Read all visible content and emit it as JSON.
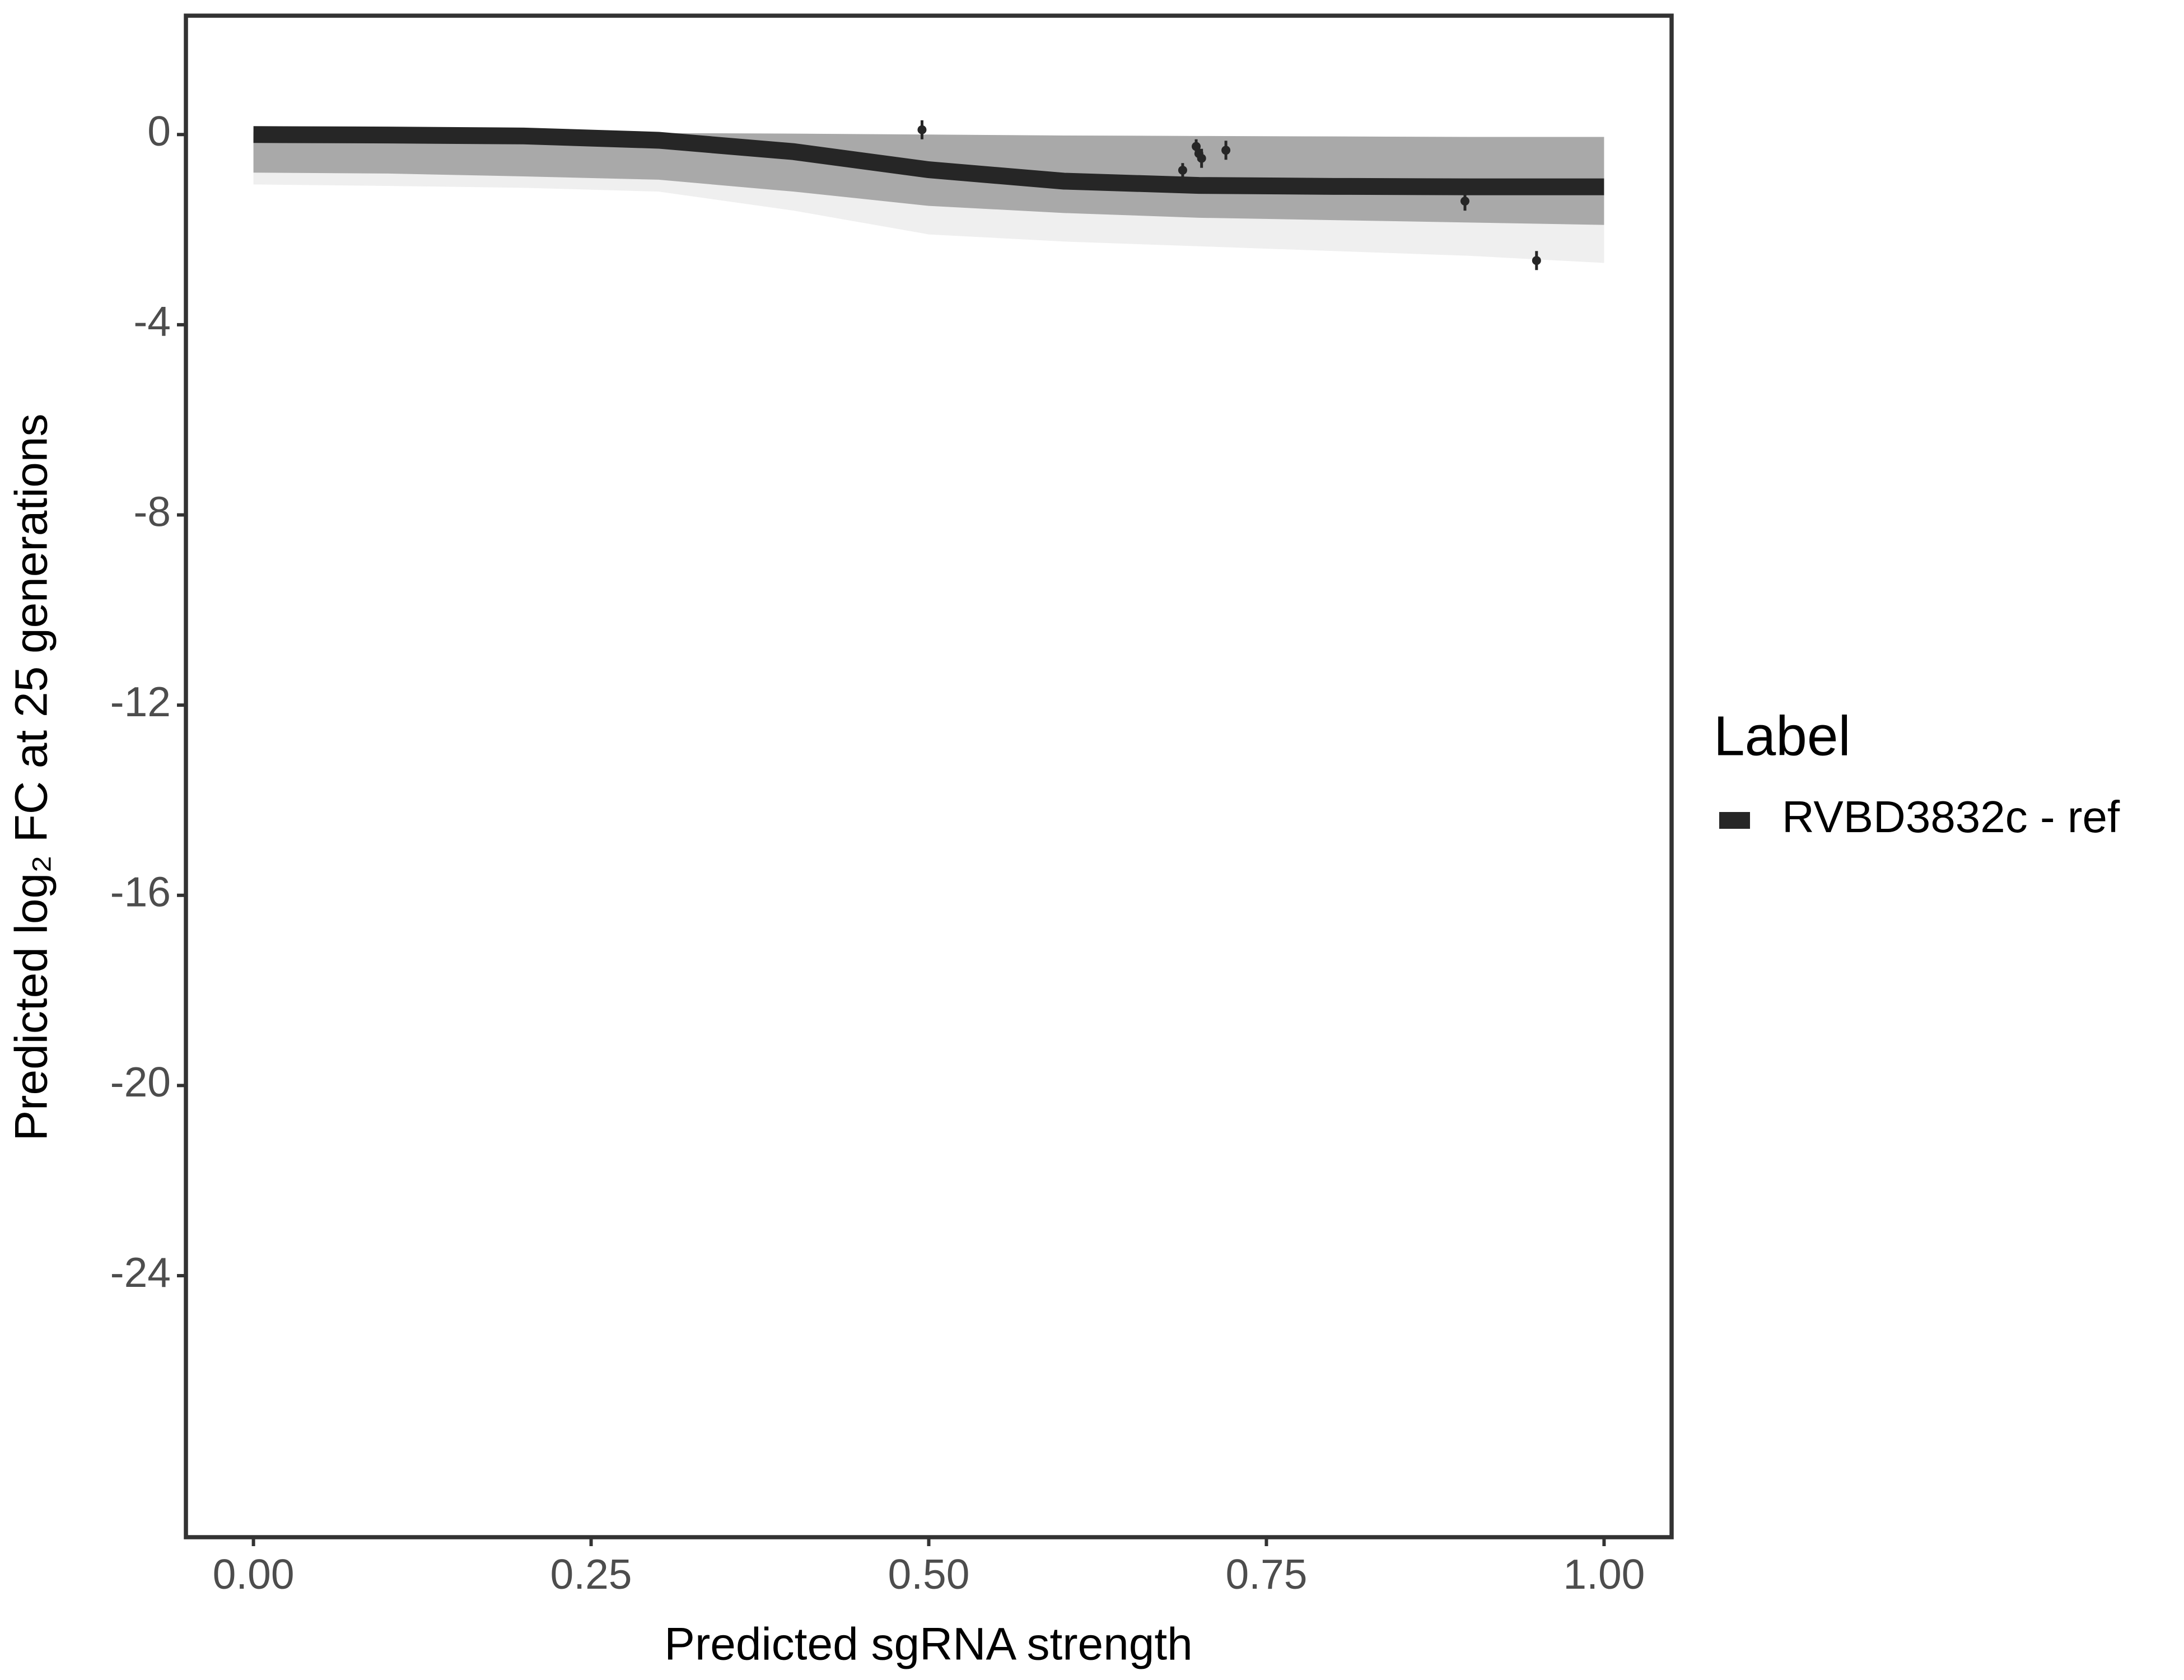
{
  "chart_data": {
    "type": "line",
    "xlabel": "Predicted sgRNA strength",
    "ylabel": "Predicted  log₂ FC at 25 generations",
    "x": [
      0,
      0.1,
      0.2,
      0.3,
      0.4,
      0.5,
      0.6,
      0.7,
      0.8,
      0.9,
      1.0
    ],
    "series": [
      {
        "name": "RVBD3832c - ref",
        "color": "#262626",
        "values": [
          0,
          -0.01,
          -0.03,
          -0.12,
          -0.36,
          -0.74,
          -0.98,
          -1.07,
          -1.09,
          -1.1,
          -1.1
        ]
      }
    ],
    "bands": [
      {
        "color": "#efefef",
        "upper": [
          0.05,
          0.05,
          0.04,
          0.03,
          0.02,
          0.0,
          -0.02,
          -0.03,
          -0.04,
          -0.05,
          -0.05
        ],
        "lower": [
          -1.05,
          -1.08,
          -1.12,
          -1.2,
          -1.6,
          -2.1,
          -2.25,
          -2.35,
          -2.45,
          -2.55,
          -2.7
        ]
      },
      {
        "color": "#a9a9a9",
        "upper": [
          0.05,
          0.05,
          0.04,
          0.03,
          0.02,
          0.0,
          -0.02,
          -0.03,
          -0.04,
          -0.05,
          -0.05
        ],
        "lower": [
          -0.8,
          -0.82,
          -0.88,
          -0.95,
          -1.2,
          -1.5,
          -1.65,
          -1.75,
          -1.8,
          -1.85,
          -1.9
        ]
      }
    ],
    "points": {
      "color": "#262626",
      "x": [
        0.495,
        0.688,
        0.698,
        0.7,
        0.702,
        0.72,
        0.897,
        0.95
      ],
      "y": [
        0.1,
        -0.75,
        -0.25,
        -0.4,
        -0.5,
        -0.33,
        -1.4,
        -2.65
      ],
      "err": [
        0.2,
        0.15,
        0.15,
        0.15,
        0.2,
        0.2,
        0.2,
        0.2
      ]
    },
    "xlim": [
      -0.05,
      1.05
    ],
    "ylim": [
      -29.5,
      2.5
    ],
    "xticks": [
      {
        "value": 0,
        "label": "0.00"
      },
      {
        "value": 0.25,
        "label": "0.25"
      },
      {
        "value": 0.5,
        "label": "0.50"
      },
      {
        "value": 0.75,
        "label": "0.75"
      },
      {
        "value": 1,
        "label": "1.00"
      }
    ],
    "yticks": [
      0,
      -4,
      -8,
      -12,
      -16,
      -20,
      -24
    ],
    "legend": {
      "title": "Label",
      "position": "right"
    }
  }
}
